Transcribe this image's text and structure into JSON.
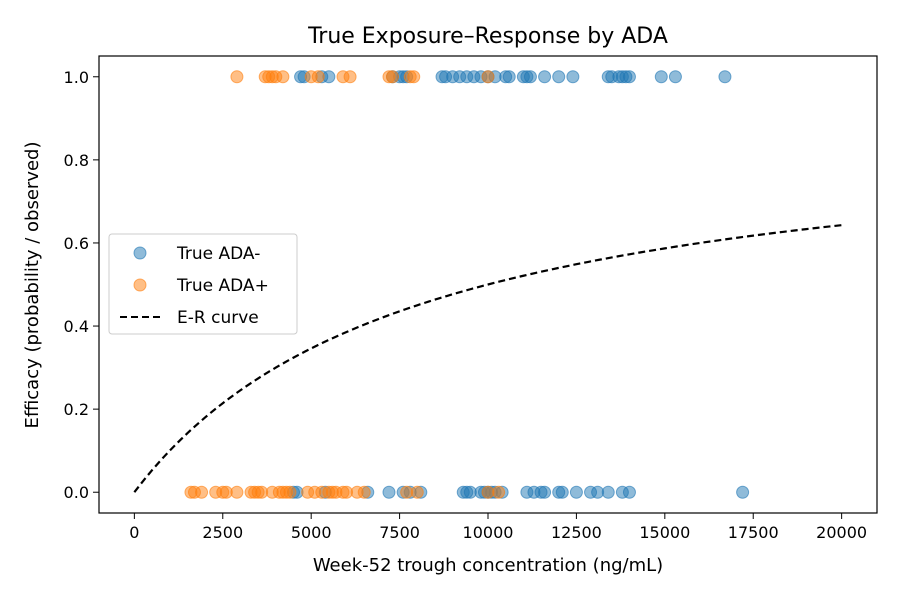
{
  "chart_data": {
    "type": "scatter",
    "title": "True Exposure–Response by ADA",
    "xlabel": "Week-52 trough concentration (ng/mL)",
    "ylabel": "Efficacy (probability / observed)",
    "xlim": [
      -1000,
      21000
    ],
    "ylim": [
      -0.05,
      1.05
    ],
    "xticks": [
      0,
      2500,
      5000,
      7500,
      10000,
      12500,
      15000,
      17500,
      20000
    ],
    "xtick_labels": [
      "0",
      "2500",
      "5000",
      "7500",
      "10000",
      "12500",
      "15000",
      "17500",
      "20000"
    ],
    "yticks": [
      0.0,
      0.2,
      0.4,
      0.6,
      0.8,
      1.0
    ],
    "ytick_labels": [
      "0.0",
      "0.2",
      "0.4",
      "0.6",
      "0.8",
      "1.0"
    ],
    "legend": {
      "position": "center-left",
      "entries": [
        "True ADA-",
        "True ADA+",
        "E-R curve"
      ]
    },
    "series": [
      {
        "name": "True ADA-",
        "kind": "scatter",
        "color": "#1f77b4",
        "points": [
          [
            4700,
            1
          ],
          [
            4800,
            1
          ],
          [
            5300,
            1
          ],
          [
            5500,
            1
          ],
          [
            7300,
            1
          ],
          [
            7500,
            1
          ],
          [
            7600,
            1
          ],
          [
            7700,
            1
          ],
          [
            8700,
            1
          ],
          [
            8800,
            1
          ],
          [
            9000,
            1
          ],
          [
            9200,
            1
          ],
          [
            9400,
            1
          ],
          [
            9600,
            1
          ],
          [
            9800,
            1
          ],
          [
            10000,
            1
          ],
          [
            10200,
            1
          ],
          [
            10500,
            1
          ],
          [
            10600,
            1
          ],
          [
            11000,
            1
          ],
          [
            11100,
            1
          ],
          [
            11200,
            1
          ],
          [
            11600,
            1
          ],
          [
            12000,
            1
          ],
          [
            12400,
            1
          ],
          [
            13400,
            1
          ],
          [
            13500,
            1
          ],
          [
            13700,
            1
          ],
          [
            13800,
            1
          ],
          [
            13900,
            1
          ],
          [
            14000,
            1
          ],
          [
            14900,
            1
          ],
          [
            15300,
            1
          ],
          [
            16700,
            1
          ],
          [
            4500,
            0
          ],
          [
            4600,
            0
          ],
          [
            5400,
            0
          ],
          [
            6600,
            0
          ],
          [
            7200,
            0
          ],
          [
            7600,
            0
          ],
          [
            7800,
            0
          ],
          [
            8100,
            0
          ],
          [
            9300,
            0
          ],
          [
            9400,
            0
          ],
          [
            9500,
            0
          ],
          [
            9800,
            0
          ],
          [
            9900,
            0
          ],
          [
            10000,
            0
          ],
          [
            10100,
            0
          ],
          [
            10200,
            0
          ],
          [
            10400,
            0
          ],
          [
            11100,
            0
          ],
          [
            11300,
            0
          ],
          [
            11500,
            0
          ],
          [
            11600,
            0
          ],
          [
            12000,
            0
          ],
          [
            12100,
            0
          ],
          [
            12500,
            0
          ],
          [
            12900,
            0
          ],
          [
            13100,
            0
          ],
          [
            13400,
            0
          ],
          [
            13800,
            0
          ],
          [
            14000,
            0
          ],
          [
            17200,
            0
          ]
        ]
      },
      {
        "name": "True ADA+",
        "kind": "scatter",
        "color": "#ff7f0e",
        "points": [
          [
            2900,
            1
          ],
          [
            3700,
            1
          ],
          [
            3800,
            1
          ],
          [
            3900,
            1
          ],
          [
            4000,
            1
          ],
          [
            4200,
            1
          ],
          [
            5000,
            1
          ],
          [
            5200,
            1
          ],
          [
            5900,
            1
          ],
          [
            6100,
            1
          ],
          [
            7200,
            1
          ],
          [
            7300,
            1
          ],
          [
            7800,
            1
          ],
          [
            7900,
            1
          ],
          [
            10000,
            1
          ],
          [
            1600,
            0
          ],
          [
            1700,
            0
          ],
          [
            1900,
            0
          ],
          [
            2300,
            0
          ],
          [
            2500,
            0
          ],
          [
            2600,
            0
          ],
          [
            2900,
            0
          ],
          [
            3300,
            0
          ],
          [
            3400,
            0
          ],
          [
            3500,
            0
          ],
          [
            3600,
            0
          ],
          [
            3900,
            0
          ],
          [
            4100,
            0
          ],
          [
            4200,
            0
          ],
          [
            4300,
            0
          ],
          [
            4400,
            0
          ],
          [
            4900,
            0
          ],
          [
            5100,
            0
          ],
          [
            5300,
            0
          ],
          [
            5500,
            0
          ],
          [
            5600,
            0
          ],
          [
            5700,
            0
          ],
          [
            5900,
            0
          ],
          [
            6000,
            0
          ],
          [
            6300,
            0
          ],
          [
            6500,
            0
          ],
          [
            7700,
            0
          ],
          [
            8000,
            0
          ],
          [
            10000,
            0
          ],
          [
            10300,
            0
          ]
        ]
      },
      {
        "name": "E-R curve",
        "kind": "line",
        "style": "dashed",
        "color": "#000000",
        "model": {
          "emax": 0.9,
          "ec50": 8000
        },
        "x": [
          0,
          20000
        ]
      }
    ]
  }
}
